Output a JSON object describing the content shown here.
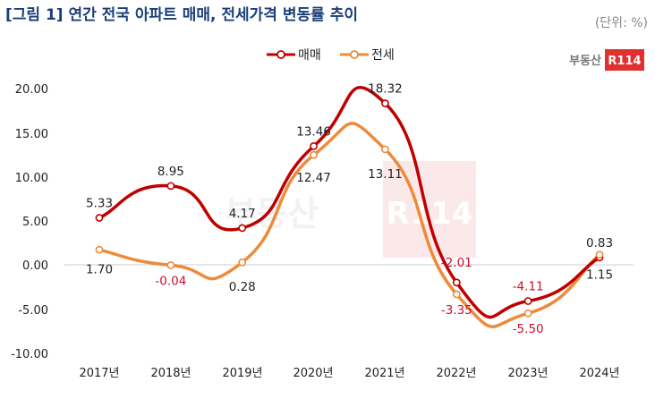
{
  "title": "[그림 1] 연간 전국 아파트 매매, 전세가격 변동률 추이",
  "unit": "(단위: %)",
  "brand": {
    "name": "부동산",
    "box": "R114",
    "color": "#e0312f"
  },
  "watermark": {
    "name": "부동산",
    "box": "R114"
  },
  "chart_data": {
    "type": "line",
    "categories": [
      "2017년",
      "2018년",
      "2019년",
      "2020년",
      "2021년",
      "2022년",
      "2023년",
      "2024년"
    ],
    "ylim": [
      -10,
      20
    ],
    "yticks": [
      "20.00",
      "15.00",
      "10.00",
      "5.00",
      "0.00",
      "-5.00",
      "-10.00"
    ],
    "grid": false,
    "legend": "top-center",
    "series": [
      {
        "name": "매매",
        "color": "#c00000",
        "values": [
          5.33,
          8.95,
          4.17,
          13.46,
          18.32,
          -2.01,
          -4.11,
          0.83
        ],
        "labels": [
          "5.33",
          "8.95",
          "4.17",
          "13.46",
          "18.32",
          "-2.01",
          "-4.11",
          "0.83"
        ]
      },
      {
        "name": "전세",
        "color": "#ed8b3a",
        "values": [
          1.7,
          -0.04,
          0.28,
          12.47,
          13.11,
          -3.35,
          -5.5,
          1.15
        ],
        "labels": [
          "1.70",
          "-0.04",
          "0.28",
          "12.47",
          "13.11",
          "-3.35",
          "-5.50",
          "1.15"
        ]
      }
    ]
  }
}
